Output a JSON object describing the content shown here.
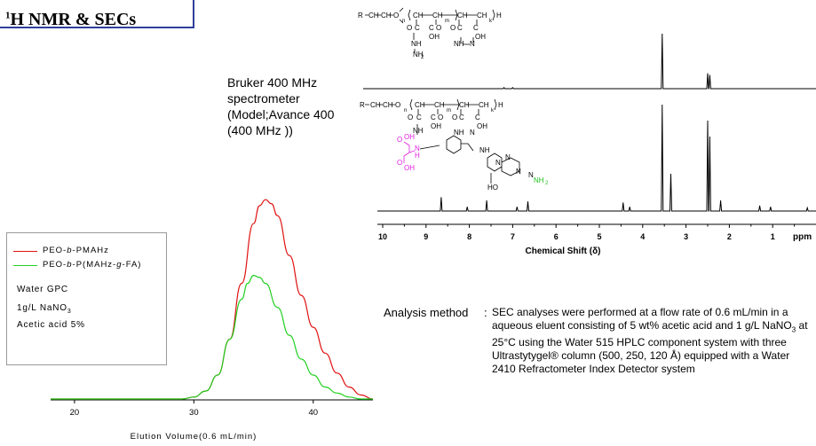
{
  "slide": {
    "title_main": "H NMR & SECs",
    "title_sup": "1",
    "spectrometer_text": "Bruker 400 MHz\nspectrometer\n(Model;Avance 400\n(400 MHz ))",
    "analysis_label": "Analysis method",
    "analysis_colon": ":",
    "analysis_text_1": "SEC analyses were performed at a flow rate of 0.6 mL/min in a aqueous eluent consisting of 5 wt% acetic acid and 1 g/L NaNO",
    "analysis_text_sub": "3",
    "analysis_text_2": " at 25°C using the Water 515 HPLC component system with three Ultrastytygel® column (500, 250, 120 Å) equipped with a Water 2410 Refractometer Index Detector system"
  },
  "legend": {
    "items": [
      {
        "pre": "PEO-",
        "italic": "b",
        "post": "-PMAHz",
        "color": "#e01010"
      },
      {
        "pre": "PEO-",
        "italic": "b",
        "mid": "-P(MAHz-",
        "italic2": "g",
        "post": "-FA)",
        "color": "#20d020"
      }
    ],
    "conditions": {
      "line1": "Water GPC",
      "line2_pre": "1g/L NaNO",
      "line2_sub": "3",
      "line3": "Acetic acid 5%"
    }
  },
  "chemistry": {
    "top_structure_labels": [
      "R",
      "CH",
      "CH",
      "O",
      "n",
      "CH",
      "CH",
      "m",
      "CH",
      "CH",
      "k",
      "H",
      "O",
      "C",
      "C",
      "O",
      "O",
      "C",
      "C",
      "OH",
      "OH",
      "NH",
      "NH",
      "N",
      "NH"
    ],
    "bottom_structure_labels": [
      "R",
      "CH",
      "CH",
      "O",
      "n",
      "CH",
      "CH",
      "m",
      "CH",
      "CH",
      "k",
      "H",
      "O",
      "C",
      "C",
      "O",
      "O",
      "C",
      "C",
      "OH",
      "OH",
      "NH",
      "NH",
      "N",
      "OH",
      "OH",
      "O",
      "O",
      "N",
      "H",
      "NH",
      "N",
      "N",
      "N",
      "N",
      "HO",
      "NH"
    ],
    "bottom_structure_nh2_sub": "2",
    "top_structure_nh2_sub": "2"
  },
  "chart_data": [
    {
      "type": "line",
      "title": "",
      "xlabel": "Elution Volume(0.6 mL/min)",
      "ylabel": "",
      "xlim": [
        18,
        45
      ],
      "ylim": [
        0,
        1.05
      ],
      "x_ticks": [
        20,
        30,
        40
      ],
      "grid": false,
      "legend_position": "left",
      "series": [
        {
          "name": "PEO-b-PMAHz",
          "color": "#e01010",
          "points": [
            [
              18,
              0
            ],
            [
              29,
              0
            ],
            [
              30,
              0.01
            ],
            [
              31,
              0.04
            ],
            [
              32,
              0.12
            ],
            [
              33,
              0.3
            ],
            [
              34,
              0.58
            ],
            [
              35,
              0.88
            ],
            [
              35.5,
              0.97
            ],
            [
              36,
              1.0
            ],
            [
              36.5,
              0.98
            ],
            [
              37,
              0.92
            ],
            [
              38,
              0.72
            ],
            [
              39,
              0.52
            ],
            [
              40,
              0.36
            ],
            [
              41,
              0.23
            ],
            [
              42,
              0.13
            ],
            [
              43,
              0.06
            ],
            [
              44,
              0.02
            ],
            [
              45,
              0
            ]
          ]
        },
        {
          "name": "PEO-b-P(MAHz-g-FA)",
          "color": "#20d020",
          "points": [
            [
              18,
              0
            ],
            [
              29,
              0
            ],
            [
              30,
              0.01
            ],
            [
              31,
              0.04
            ],
            [
              32,
              0.12
            ],
            [
              33,
              0.3
            ],
            [
              34,
              0.5
            ],
            [
              34.5,
              0.58
            ],
            [
              35,
              0.62
            ],
            [
              35.5,
              0.61
            ],
            [
              36,
              0.58
            ],
            [
              37,
              0.46
            ],
            [
              38,
              0.32
            ],
            [
              39,
              0.2
            ],
            [
              40,
              0.12
            ],
            [
              41,
              0.06
            ],
            [
              42,
              0.03
            ],
            [
              43,
              0.01
            ],
            [
              44,
              0
            ],
            [
              45,
              0
            ]
          ]
        }
      ]
    },
    {
      "type": "line",
      "title": "",
      "xlabel": "Chemical Shift (δ)",
      "ylabel": "",
      "xlim": [
        10,
        0
      ],
      "x_ticks": [
        10,
        9,
        8,
        7,
        6,
        5,
        4,
        3,
        2,
        1
      ],
      "x_unit_label": "ppm",
      "grid": false,
      "series": [
        {
          "name": "",
          "color": "#000000",
          "peaks": [
            [
              7.2,
              0.02
            ],
            [
              7.0,
              0.02
            ],
            [
              3.55,
              1.0
            ],
            [
              2.5,
              0.28
            ],
            [
              2.45,
              0.25
            ]
          ]
        },
        {
          "name": "",
          "color": "#000000",
          "peaks": [
            [
              8.65,
              0.13
            ],
            [
              8.05,
              0.04
            ],
            [
              7.6,
              0.1
            ],
            [
              6.9,
              0.04
            ],
            [
              6.65,
              0.09
            ],
            [
              4.45,
              0.08
            ],
            [
              4.3,
              0.04
            ],
            [
              3.55,
              1.0
            ],
            [
              3.35,
              0.35
            ],
            [
              2.5,
              0.85
            ],
            [
              2.45,
              0.7
            ],
            [
              2.2,
              0.1
            ],
            [
              1.3,
              0.05
            ],
            [
              1.05,
              0.04
            ],
            [
              0.2,
              0.03
            ]
          ]
        }
      ]
    }
  ]
}
